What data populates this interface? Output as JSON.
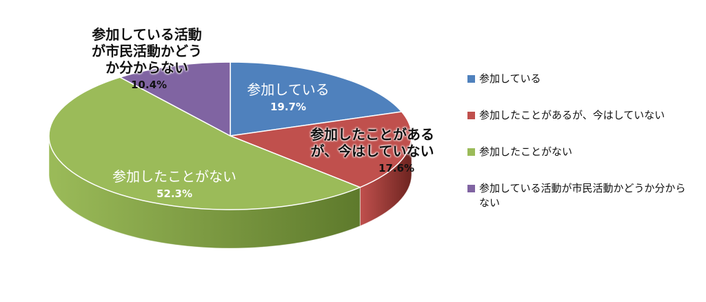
{
  "chart_data": {
    "type": "pie",
    "title": "",
    "slices": [
      {
        "name": "参加している",
        "value": 19.7,
        "label": "19.7%",
        "color": "#4F81BD",
        "side_color": "#2E4F77"
      },
      {
        "name": "参加したことがあるが、今はしていない",
        "value": 17.6,
        "label": "17.6%",
        "color": "#C0504D",
        "side_color": "#6E2420"
      },
      {
        "name": "参加したことがない",
        "value": 52.3,
        "label": "52.3%",
        "color": "#9BBB59",
        "side_color": "#5E7A2C"
      },
      {
        "name": "参加している活動が市民活動かどうか分からない",
        "value": 10.4,
        "label": "10.4%",
        "color": "#8064A2",
        "side_color": "#4A3568"
      }
    ],
    "legend_position": "right"
  },
  "labels": {
    "s0_name": "参加している",
    "s1_name_line1": "参加したことがある",
    "s1_name_line2": "が、今はしていない",
    "s2_name": "参加したことがない",
    "s3_name_line1": "参加している活動",
    "s3_name_line2": "が市民活動かどう",
    "s3_name_line3": "か分からない"
  },
  "legend": [
    {
      "text": "参加している"
    },
    {
      "text": "参加したことがあるが、今はしていない"
    },
    {
      "text": "参加したことがない"
    },
    {
      "text": "参加している活動が市民活動かどうか分からない"
    }
  ]
}
